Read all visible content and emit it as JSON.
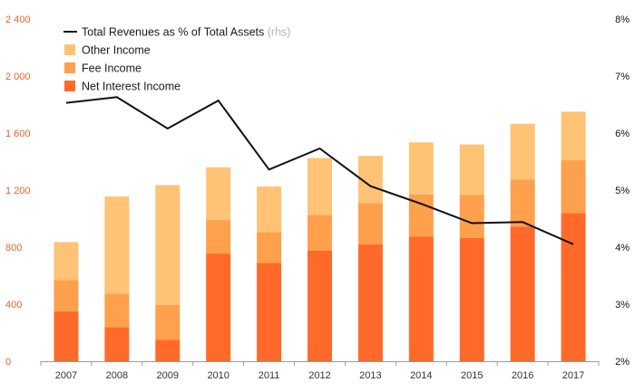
{
  "chart_data": {
    "type": "bar",
    "stacked": true,
    "categories": [
      "2007",
      "2008",
      "2009",
      "2010",
      "2011",
      "2012",
      "2013",
      "2014",
      "2015",
      "2016",
      "2017"
    ],
    "series": [
      {
        "name": "Net Interest Income",
        "color": "#ff6a2b",
        "values": [
          350,
          240,
          150,
          755,
          690,
          775,
          820,
          875,
          865,
          945,
          1040
        ]
      },
      {
        "name": "Fee Income",
        "color": "#ffa04d",
        "values": [
          220,
          235,
          245,
          235,
          215,
          250,
          290,
          295,
          300,
          330,
          370
        ]
      },
      {
        "name": "Other Income",
        "color": "#ffc375",
        "values": [
          265,
          680,
          840,
          370,
          320,
          400,
          330,
          365,
          355,
          390,
          340
        ]
      }
    ],
    "line_series": {
      "name": "Total Revenues as % of Total Assets",
      "suffix": "(rhs)",
      "color": "#111111",
      "values": [
        6.53,
        6.63,
        6.08,
        6.57,
        5.36,
        5.73,
        5.07,
        4.76,
        4.42,
        4.44,
        4.05
      ]
    },
    "y_left": {
      "min": 0,
      "max": 2400,
      "ticks": [
        0,
        400,
        800,
        1200,
        1600,
        2000,
        2400
      ],
      "tick_labels": [
        "0",
        "400",
        "800",
        "1 200",
        "1 600",
        "2 000",
        "2 400"
      ],
      "color": "#e8632a"
    },
    "y_right": {
      "min": 2,
      "max": 8,
      "ticks": [
        2,
        3,
        4,
        5,
        6,
        7,
        8
      ],
      "tick_labels": [
        "2%",
        "3%",
        "4%",
        "5%",
        "6%",
        "7%",
        "8%"
      ]
    },
    "legend_order": [
      "line",
      "Other Income",
      "Fee Income",
      "Net Interest Income"
    ],
    "legend_position": "top-left",
    "grid": false
  }
}
